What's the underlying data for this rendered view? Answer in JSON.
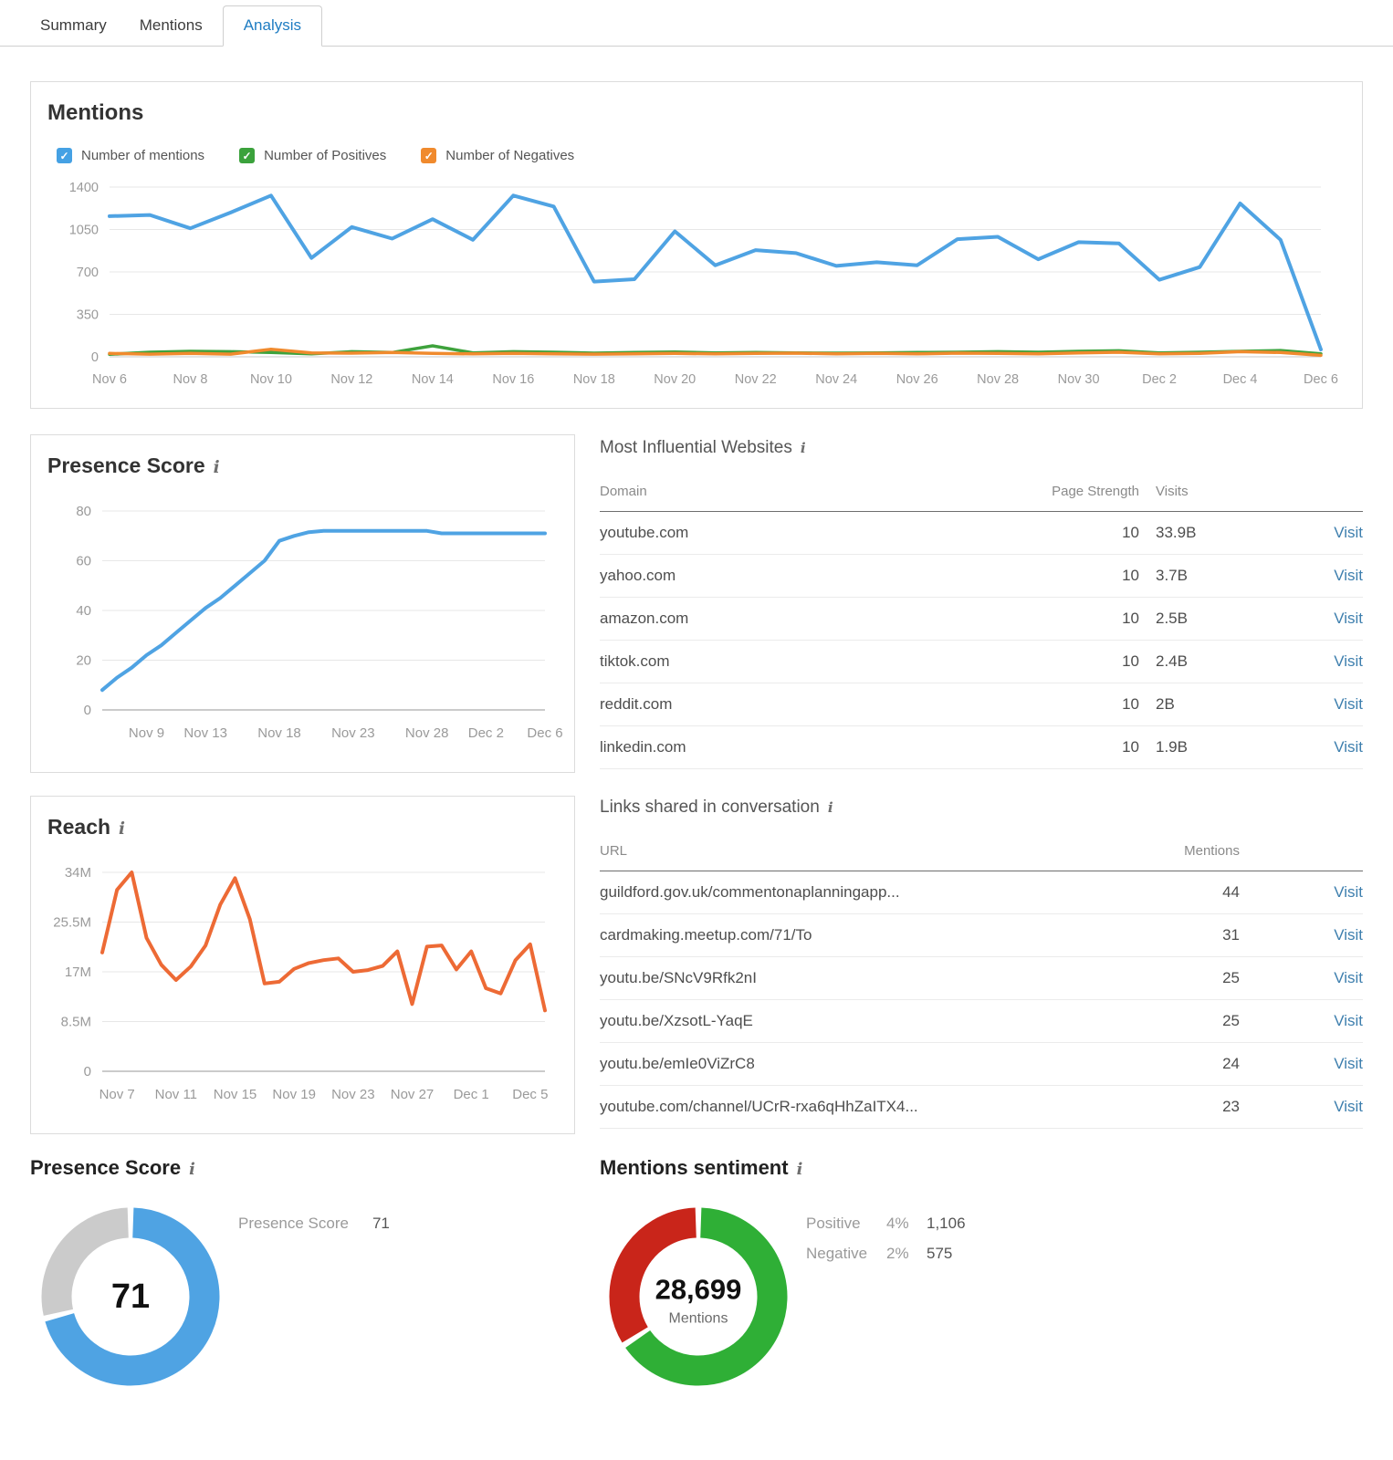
{
  "tabs": {
    "items": [
      {
        "label": "Summary",
        "active": false
      },
      {
        "label": "Mentions",
        "active": false
      },
      {
        "label": "Analysis",
        "active": true
      }
    ]
  },
  "colors": {
    "link": "#3E7FAE",
    "tab_active": "#1E7CC2",
    "grid": "#E7E7E7"
  },
  "mentions_panel": {
    "title": "Mentions",
    "legend": [
      {
        "label": "Number of mentions",
        "color": "#45A1E4"
      },
      {
        "label": "Number of Positives",
        "color": "#3BA23C"
      },
      {
        "label": "Number of Negatives",
        "color": "#F08A2D"
      }
    ],
    "chart_data": {
      "type": "line",
      "n_points": 31,
      "ylim": [
        0,
        1400
      ],
      "grid": true,
      "y_ticks": [
        {
          "value": 0,
          "label": "0"
        },
        {
          "value": 350,
          "label": "350"
        },
        {
          "value": 700,
          "label": "700"
        },
        {
          "value": 1050,
          "label": "1050"
        },
        {
          "value": 1400,
          "label": "1400"
        }
      ],
      "x_ticks": [
        {
          "index": 0,
          "label": "Nov 6"
        },
        {
          "index": 2,
          "label": "Nov 8"
        },
        {
          "index": 4,
          "label": "Nov 10"
        },
        {
          "index": 6,
          "label": "Nov 12"
        },
        {
          "index": 8,
          "label": "Nov 14"
        },
        {
          "index": 10,
          "label": "Nov 16"
        },
        {
          "index": 12,
          "label": "Nov 18"
        },
        {
          "index": 14,
          "label": "Nov 20"
        },
        {
          "index": 16,
          "label": "Nov 22"
        },
        {
          "index": 18,
          "label": "Nov 24"
        },
        {
          "index": 20,
          "label": "Nov 26"
        },
        {
          "index": 22,
          "label": "Nov 28"
        },
        {
          "index": 24,
          "label": "Nov 30"
        },
        {
          "index": 26,
          "label": "Dec 2"
        },
        {
          "index": 28,
          "label": "Dec 4"
        },
        {
          "index": 30,
          "label": "Dec 6"
        }
      ],
      "series": [
        {
          "name": "Number of mentions",
          "color": "#4FA3E3",
          "width": 4,
          "values": [
            1160,
            1170,
            1060,
            1190,
            1330,
            815,
            1070,
            975,
            1135,
            965,
            1330,
            1240,
            620,
            640,
            1035,
            755,
            880,
            855,
            750,
            780,
            755,
            970,
            990,
            805,
            945,
            935,
            635,
            740,
            1265,
            965,
            60
          ]
        },
        {
          "name": "Number of Positives",
          "color": "#3EA23C",
          "width": 3.5,
          "values": [
            20,
            38,
            45,
            42,
            35,
            25,
            42,
            35,
            90,
            32,
            42,
            38,
            30,
            35,
            40,
            32,
            35,
            32,
            30,
            32,
            35,
            38,
            42,
            38,
            45,
            50,
            32,
            38,
            45,
            52,
            25
          ]
        },
        {
          "name": "Number of Negatives",
          "color": "#F08A2D",
          "width": 3.5,
          "values": [
            28,
            22,
            28,
            22,
            62,
            32,
            30,
            35,
            28,
            24,
            28,
            24,
            22,
            25,
            28,
            24,
            28,
            30,
            24,
            28,
            24,
            30,
            28,
            24,
            32,
            38,
            25,
            28,
            42,
            35,
            12
          ]
        }
      ]
    }
  },
  "presence_panel": {
    "title": "Presence Score",
    "chart_data": {
      "type": "line",
      "n_points": 31,
      "ylim": [
        0,
        80
      ],
      "grid": true,
      "y_ticks": [
        {
          "value": 0,
          "label": "0"
        },
        {
          "value": 20,
          "label": "20"
        },
        {
          "value": 40,
          "label": "40"
        },
        {
          "value": 60,
          "label": "60"
        },
        {
          "value": 80,
          "label": "80"
        }
      ],
      "x_ticks": [
        {
          "index": 3,
          "label": "Nov 9"
        },
        {
          "index": 7,
          "label": "Nov 13"
        },
        {
          "index": 12,
          "label": "Nov 18"
        },
        {
          "index": 17,
          "label": "Nov 23"
        },
        {
          "index": 22,
          "label": "Nov 28"
        },
        {
          "index": 26,
          "label": "Dec 2"
        },
        {
          "index": 30,
          "label": "Dec 6"
        }
      ],
      "series": [
        {
          "name": "Presence Score",
          "color": "#4FA3E3",
          "width": 4,
          "values": [
            8,
            13,
            17,
            22,
            26,
            31,
            36,
            41,
            45,
            50,
            55,
            60,
            68,
            70,
            71.5,
            72,
            72,
            72,
            72,
            72,
            72,
            72,
            72,
            71,
            71,
            71,
            71,
            71,
            71,
            71,
            71
          ]
        }
      ]
    }
  },
  "reach_panel": {
    "title": "Reach",
    "chart_data": {
      "type": "line",
      "n_points": 31,
      "ylim": [
        0,
        34
      ],
      "grid": true,
      "y_ticks": [
        {
          "value": 0,
          "label": "0"
        },
        {
          "value": 8.5,
          "label": "8.5M"
        },
        {
          "value": 17,
          "label": "17M"
        },
        {
          "value": 25.5,
          "label": "25.5M"
        },
        {
          "value": 34,
          "label": "34M"
        }
      ],
      "x_ticks": [
        {
          "index": 1,
          "label": "Nov 7"
        },
        {
          "index": 5,
          "label": "Nov 11"
        },
        {
          "index": 9,
          "label": "Nov 15"
        },
        {
          "index": 13,
          "label": "Nov 19"
        },
        {
          "index": 17,
          "label": "Nov 23"
        },
        {
          "index": 21,
          "label": "Nov 27"
        },
        {
          "index": 25,
          "label": "Dec 1"
        },
        {
          "index": 29,
          "label": "Dec 5"
        }
      ],
      "series": [
        {
          "name": "Reach",
          "color": "#ED6A35",
          "width": 4,
          "values": [
            20.3,
            31,
            34,
            22.8,
            18.2,
            15.6,
            17.9,
            21.5,
            28.5,
            33,
            26,
            15,
            15.3,
            17.5,
            18.5,
            19,
            19.3,
            17,
            17.3,
            18,
            20.5,
            11.5,
            21.3,
            21.5,
            17.4,
            20.5,
            14.2,
            13.3,
            19,
            21.7,
            10.4
          ]
        }
      ]
    }
  },
  "websites": {
    "title": "Most Influential Websites",
    "headers": {
      "domain": "Domain",
      "strength": "Page Strength",
      "visits": "Visits"
    },
    "rows": [
      {
        "domain": "youtube.com",
        "strength": "10",
        "visits": "33.9B",
        "action": "Visit"
      },
      {
        "domain": "yahoo.com",
        "strength": "10",
        "visits": "3.7B",
        "action": "Visit"
      },
      {
        "domain": "amazon.com",
        "strength": "10",
        "visits": "2.5B",
        "action": "Visit"
      },
      {
        "domain": "tiktok.com",
        "strength": "10",
        "visits": "2.4B",
        "action": "Visit"
      },
      {
        "domain": "reddit.com",
        "strength": "10",
        "visits": "2B",
        "action": "Visit"
      },
      {
        "domain": "linkedin.com",
        "strength": "10",
        "visits": "1.9B",
        "action": "Visit"
      }
    ]
  },
  "links": {
    "title": "Links shared in conversation",
    "headers": {
      "url": "URL",
      "mentions": "Mentions"
    },
    "rows": [
      {
        "url": "guildford.gov.uk/commentonaplanningapp...",
        "mentions": "44",
        "action": "Visit"
      },
      {
        "url": "cardmaking.meetup.com/71/To",
        "mentions": "31",
        "action": "Visit"
      },
      {
        "url": "youtu.be/SNcV9Rfk2nI",
        "mentions": "25",
        "action": "Visit"
      },
      {
        "url": "youtu.be/XzsotL-YaqE",
        "mentions": "25",
        "action": "Visit"
      },
      {
        "url": "youtu.be/emIe0ViZrC8",
        "mentions": "24",
        "action": "Visit"
      },
      {
        "url": "youtube.com/channel/UCrR-rxa6qHhZaITX4...",
        "mentions": "23",
        "action": "Visit"
      }
    ]
  },
  "presence_donut": {
    "title": "Presence Score",
    "chart_data": {
      "type": "pie",
      "center_value": "71",
      "value": 71,
      "max": 100,
      "color": "#4FA3E3",
      "track_color": "#CBCBCB",
      "legend_label": "Presence Score",
      "legend_value": "71"
    }
  },
  "sentiment_donut": {
    "title": "Mentions sentiment",
    "chart_data": {
      "type": "pie",
      "center_value": "28,699",
      "center_label": "Mentions",
      "positive_count": 1106,
      "negative_count": 575,
      "segments": [
        {
          "label": "Positive",
          "percent": "4%",
          "count": "1,106",
          "fraction": 0.658,
          "color": "#2FAF36"
        },
        {
          "label": "Negative",
          "percent": "2%",
          "count": "575",
          "fraction": 0.342,
          "color": "#C9251A"
        }
      ]
    }
  }
}
